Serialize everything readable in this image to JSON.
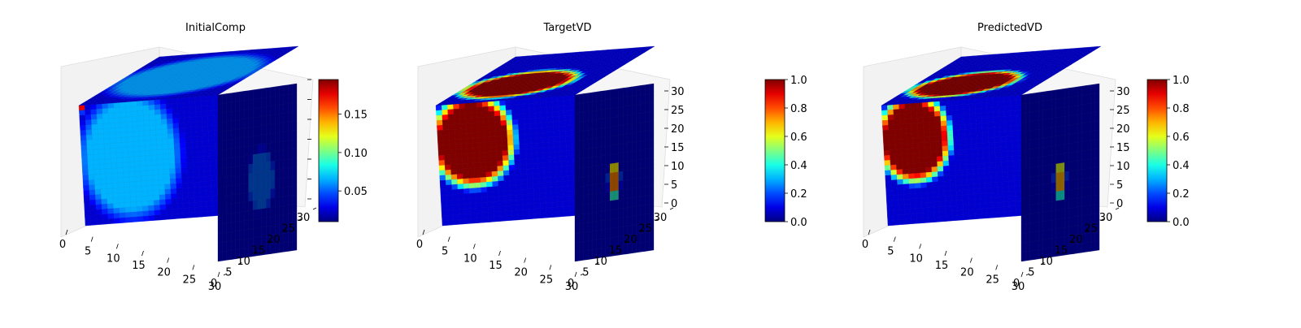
{
  "chart_data": [
    {
      "type": "voxel-3d",
      "title": "InitialComp",
      "x_ticks": [
        "0",
        "5",
        "10",
        "15",
        "20",
        "25",
        "30"
      ],
      "y_ticks": [
        "0",
        "5",
        "10",
        "15",
        "20",
        "25",
        "30"
      ],
      "z_ticks": [],
      "grid_size": 32,
      "colormap": "jet",
      "colorbar": {
        "min": 0.01,
        "max": 0.195,
        "ticks": [
          "0.05",
          "0.10",
          "0.15"
        ],
        "tick_values": [
          0.05,
          0.1,
          0.15
        ]
      },
      "features": [
        {
          "face": "front",
          "u": 0.35,
          "v": 0.45,
          "ru": 0.38,
          "rv": 0.55,
          "level": 0.3
        },
        {
          "face": "top",
          "u": 0.5,
          "v": 0.5,
          "ru": 0.55,
          "rv": 0.45,
          "level": 0.28
        },
        {
          "face": "side",
          "u": 0.55,
          "v": 0.55,
          "ru": 0.18,
          "rv": 0.2,
          "level": 0.22
        },
        {
          "face": "front",
          "u": 0.02,
          "v": 0.03,
          "ru": 0.03,
          "rv": 0.03,
          "level": 0.9
        }
      ]
    },
    {
      "type": "voxel-3d",
      "title": "TargetVD",
      "x_ticks": [
        "0",
        "5",
        "10",
        "15",
        "20",
        "25",
        "30"
      ],
      "y_ticks": [
        "0",
        "5",
        "10",
        "15",
        "20",
        "25",
        "30"
      ],
      "z_ticks": [
        "0",
        "5",
        "10",
        "15",
        "20",
        "25",
        "30"
      ],
      "grid_size": 32,
      "colormap": "jet",
      "colorbar": {
        "min": 0.0,
        "max": 1.0,
        "ticks": [
          "0.0",
          "0.2",
          "0.4",
          "0.6",
          "0.8",
          "1.0"
        ],
        "tick_values": [
          0.0,
          0.2,
          0.4,
          0.6,
          0.8,
          1.0
        ]
      },
      "features": [
        {
          "face": "front",
          "u": 0.25,
          "v": 0.32,
          "ru": 0.3,
          "rv": 0.38,
          "level": 1.0
        },
        {
          "face": "top",
          "u": 0.4,
          "v": 0.35,
          "ru": 0.4,
          "rv": 0.28,
          "level": 1.0
        },
        {
          "face": "side",
          "u": 0.5,
          "v": 0.55,
          "ru": 0.08,
          "rv": 0.1,
          "level": 0.75
        }
      ]
    },
    {
      "type": "voxel-3d",
      "title": "PredictedVD",
      "x_ticks": [
        "0",
        "5",
        "10",
        "15",
        "20",
        "25",
        "30"
      ],
      "y_ticks": [
        "0",
        "5",
        "10",
        "15",
        "20",
        "25",
        "30"
      ],
      "z_ticks": [
        "0",
        "5",
        "10",
        "15",
        "20",
        "25",
        "30"
      ],
      "grid_size": 32,
      "colormap": "jet",
      "colorbar": {
        "min": 0.0,
        "max": 1.0,
        "ticks": [
          "0.0",
          "0.2",
          "0.4",
          "0.6",
          "0.8",
          "1.0"
        ],
        "tick_values": [
          0.0,
          0.2,
          0.4,
          0.6,
          0.8,
          1.0
        ]
      },
      "features": [
        {
          "face": "front",
          "u": 0.22,
          "v": 0.3,
          "ru": 0.26,
          "rv": 0.36,
          "level": 1.0
        },
        {
          "face": "top",
          "u": 0.4,
          "v": 0.35,
          "ru": 0.38,
          "rv": 0.26,
          "level": 1.0
        },
        {
          "face": "side",
          "u": 0.5,
          "v": 0.55,
          "ru": 0.08,
          "rv": 0.1,
          "level": 0.7
        }
      ]
    }
  ]
}
